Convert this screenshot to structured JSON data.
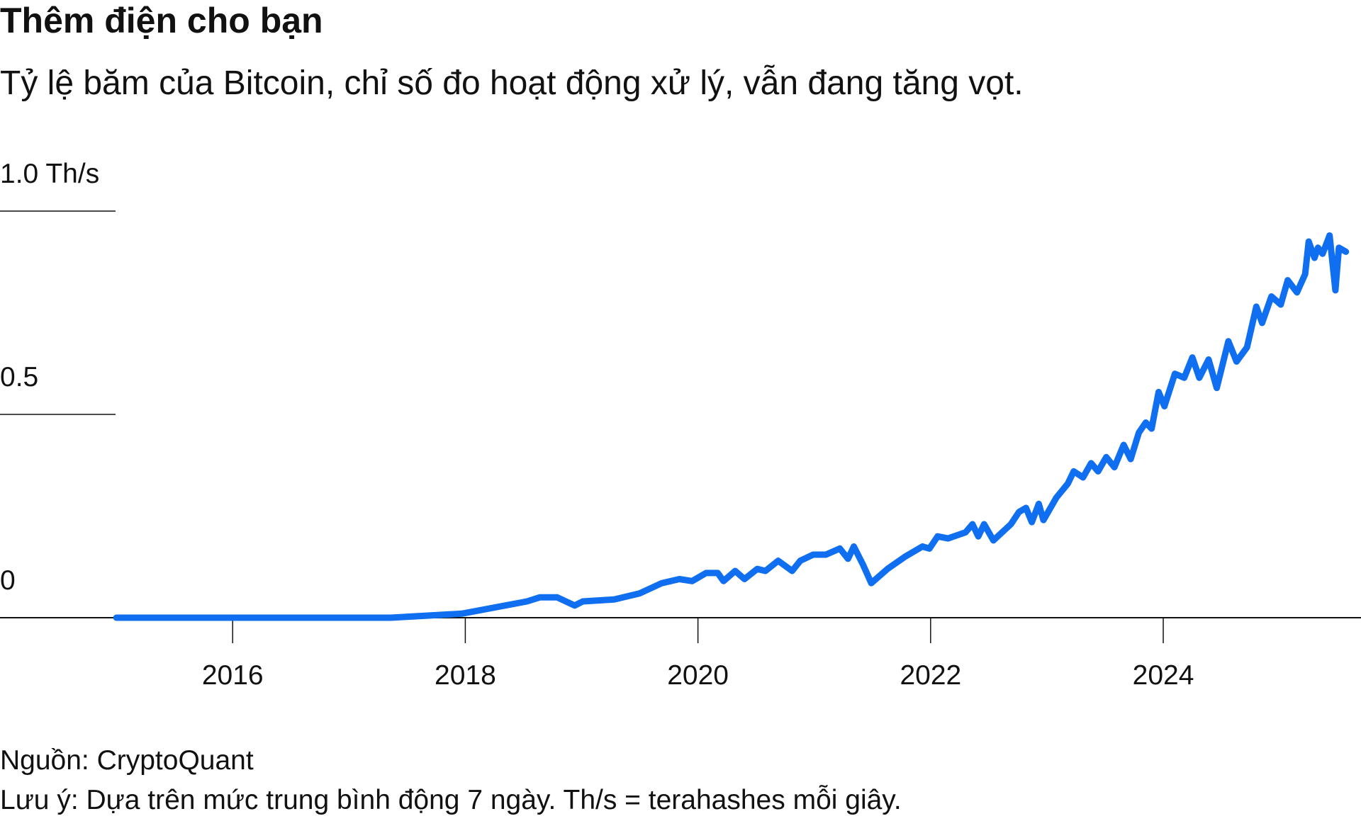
{
  "chart_data": {
    "type": "line",
    "title": "Thêm điện cho bạn",
    "subtitle": "Tỷ lệ băm của Bitcoin, chỉ số đo hoạt động xử lý, vẫn đang tăng vọt.",
    "source": "Nguồn: CryptoQuant",
    "note": "Lưu ý: Dựa trên mức trung bình động 7 ngày. Th/s = terahashes mỗi giây.",
    "color": "#0f6ff0",
    "x": [
      2015.0,
      2017.36,
      2017.97,
      2018.53,
      2018.64,
      2018.79,
      2018.94,
      2019.01,
      2019.28,
      2019.5,
      2019.69,
      2019.84,
      2019.95,
      2020.07,
      2020.17,
      2020.22,
      2020.32,
      2020.4,
      2020.51,
      2020.58,
      2020.69,
      2020.81,
      2020.88,
      2020.99,
      2021.1,
      2021.22,
      2021.29,
      2021.34,
      2021.42,
      2021.49,
      2021.63,
      2021.78,
      2021.93,
      2021.99,
      2022.06,
      2022.15,
      2022.3,
      2022.36,
      2022.41,
      2022.46,
      2022.54,
      2022.69,
      2022.76,
      2022.82,
      2022.87,
      2022.93,
      2022.97,
      2023.08,
      2023.18,
      2023.23,
      2023.31,
      2023.38,
      2023.44,
      2023.51,
      2023.58,
      2023.66,
      2023.72,
      2023.79,
      2023.85,
      2023.9,
      2023.96,
      2024.01,
      2024.1,
      2024.18,
      2024.25,
      2024.31,
      2024.39,
      2024.46,
      2024.56,
      2024.63,
      2024.72,
      2024.8,
      2024.85,
      2024.93,
      2025.01,
      2025.07,
      2025.15,
      2025.22,
      2025.25,
      2025.3,
      2025.33,
      2025.37,
      2025.43,
      2025.48,
      2025.51,
      2025.57
    ],
    "values": [
      0,
      0,
      0.01,
      0.04,
      0.05,
      0.05,
      0.03,
      0.04,
      0.045,
      0.06,
      0.085,
      0.095,
      0.09,
      0.11,
      0.11,
      0.09,
      0.115,
      0.095,
      0.12,
      0.115,
      0.14,
      0.115,
      0.14,
      0.155,
      0.155,
      0.17,
      0.145,
      0.175,
      0.13,
      0.085,
      0.12,
      0.15,
      0.175,
      0.17,
      0.2,
      0.195,
      0.21,
      0.23,
      0.2,
      0.23,
      0.19,
      0.23,
      0.26,
      0.27,
      0.235,
      0.28,
      0.24,
      0.295,
      0.33,
      0.36,
      0.345,
      0.38,
      0.36,
      0.395,
      0.37,
      0.425,
      0.39,
      0.455,
      0.48,
      0.465,
      0.555,
      0.52,
      0.6,
      0.59,
      0.64,
      0.59,
      0.635,
      0.565,
      0.68,
      0.63,
      0.665,
      0.765,
      0.725,
      0.79,
      0.77,
      0.83,
      0.8,
      0.845,
      0.925,
      0.885,
      0.91,
      0.895,
      0.94,
      0.805,
      0.91,
      0.9
    ],
    "xlim": [
      2014,
      2025.7
    ],
    "xticks": [
      2016,
      2018,
      2020,
      2022,
      2024
    ],
    "ylim": [
      0,
      1
    ],
    "yticks": [
      {
        "value": 1,
        "label": "1.0 Th/s"
      },
      {
        "value": 0.5,
        "label": "0.5"
      },
      0
    ]
  }
}
